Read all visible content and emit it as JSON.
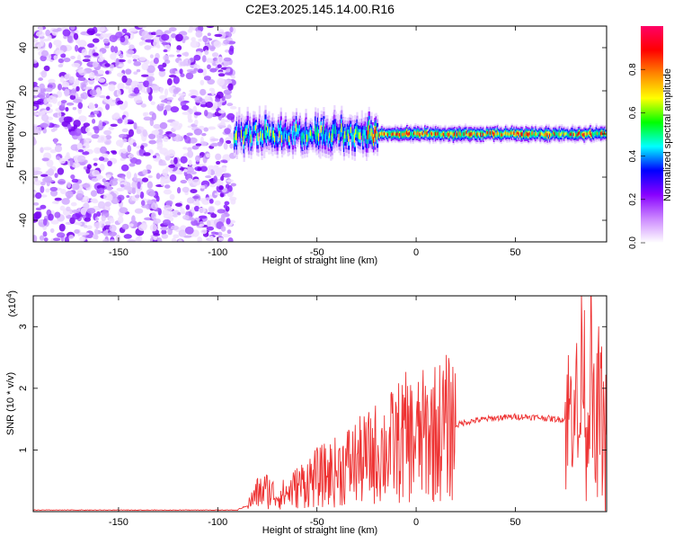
{
  "chart_data": [
    {
      "type": "heatmap",
      "title": "C2E3.2025.145.14.00.R16",
      "xlabel": "Height of straight line (km)",
      "ylabel": "Frequency (Hz)",
      "xlim": [
        -193,
        96
      ],
      "ylim": [
        -50,
        50
      ],
      "x_ticks": [
        "-150",
        "-100",
        "-50",
        "0",
        "50"
      ],
      "y_ticks": [
        "40",
        "20",
        "0",
        "-20",
        "-40"
      ],
      "colorbar": {
        "label": "Normalized spectral amplitude",
        "range": [
          0,
          1
        ],
        "ticks": [
          "0.0",
          "0.2",
          "0.4",
          "0.6",
          "0.8"
        ],
        "colors": [
          "#ffffff",
          "#cc88ff",
          "#8800ff",
          "#0000ff",
          "#00ffff",
          "#00ff00",
          "#ffff00",
          "#ff8800",
          "#ff0000",
          "#ff0066"
        ]
      },
      "features": {
        "noise_region_x": [
          -193,
          -92
        ],
        "signal_band_freq_hz": 0,
        "signal_band_x": [
          -92,
          96
        ],
        "peak_amplitude_x": [
          -25,
          85
        ]
      }
    },
    {
      "type": "line",
      "xlabel": "Height of straight line (km)",
      "ylabel": "SNR (10 * v/v)",
      "scale_label_base": "(x10",
      "scale_label_exp": "4",
      "scale_label_close": ")",
      "xlim": [
        -193,
        96
      ],
      "ylim": [
        0,
        3.5
      ],
      "x_ticks": [
        "-150",
        "-100",
        "-50",
        "0",
        "50"
      ],
      "y_ticks": [
        "1",
        "2",
        "3"
      ],
      "color": "#ee3333",
      "series": [
        {
          "x": [
            -193,
            -100,
            -90,
            -85,
            -80,
            -75,
            -70,
            -65,
            -60,
            -55,
            -50,
            -45,
            -40,
            -35,
            -30,
            -25,
            -20,
            -15,
            -10,
            -5,
            0,
            5,
            10,
            15,
            20,
            25,
            30,
            35,
            40,
            45,
            50,
            55,
            60,
            65,
            70,
            75,
            78,
            80,
            82,
            84,
            86,
            88,
            90,
            92,
            94,
            96
          ],
          "values": [
            0.02,
            0.02,
            0.03,
            0.1,
            0.3,
            0.35,
            0.25,
            0.3,
            0.4,
            0.5,
            0.55,
            0.6,
            0.65,
            0.75,
            0.8,
            0.85,
            0.95,
            1.0,
            1.1,
            1.2,
            1.15,
            1.25,
            1.3,
            1.35,
            1.4,
            1.45,
            1.48,
            1.5,
            1.52,
            1.53,
            1.54,
            1.54,
            1.53,
            1.52,
            1.5,
            1.5,
            1.6,
            2.2,
            1.0,
            3.0,
            1.2,
            2.6,
            0.8,
            1.8,
            1.4,
            1.1
          ]
        }
      ]
    }
  ]
}
